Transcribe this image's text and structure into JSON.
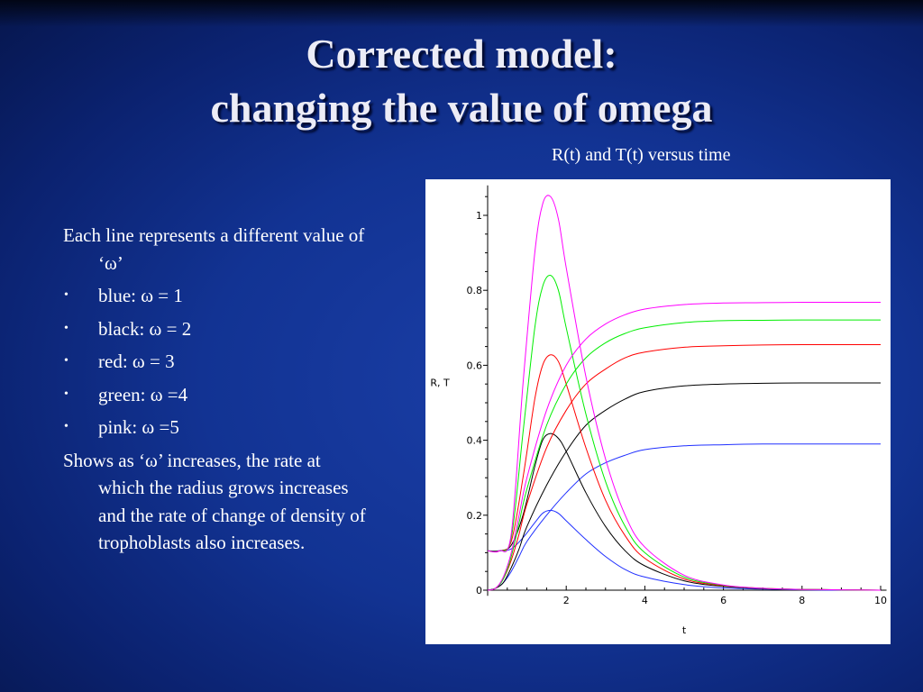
{
  "slide": {
    "title_line1": "Corrected model:",
    "title_line2": "changing the value of omega",
    "subtitle": "R(t) and T(t) versus time",
    "intro": "Each line represents a different value of ‘ω’",
    "bullets": [
      "blue: ω = 1",
      "black: ω = 2",
      "red: ω = 3",
      "green: ω =4",
      "pink: ω =5"
    ],
    "conclusion": "Shows as ‘ω’ increases, the rate at which the radius grows increases and the rate of change of density of trophoblasts also increases."
  },
  "chart_data": {
    "type": "line",
    "xlabel": "t",
    "ylabel": "R, T",
    "xlim": [
      0,
      10
    ],
    "ylim": [
      0,
      1.08
    ],
    "x_ticks": [
      "2",
      "4",
      "6",
      "8",
      "10"
    ],
    "y_ticks": [
      "0",
      "0.2",
      "0.4",
      "0.6",
      "0.8",
      "1"
    ],
    "grid": false,
    "series": [
      {
        "color": "#2030ff",
        "kind": "rising",
        "points": [
          [
            0,
            0
          ],
          [
            0.2,
            0.005
          ],
          [
            0.4,
            0.02
          ],
          [
            0.6,
            0.05
          ],
          [
            0.8,
            0.09
          ],
          [
            1,
            0.13
          ],
          [
            1.5,
            0.2
          ],
          [
            2,
            0.26
          ],
          [
            2.5,
            0.31
          ],
          [
            3,
            0.34
          ],
          [
            3.5,
            0.36
          ],
          [
            4,
            0.375
          ],
          [
            5,
            0.385
          ],
          [
            6,
            0.388
          ],
          [
            7,
            0.39
          ],
          [
            8,
            0.39
          ],
          [
            9,
            0.39
          ],
          [
            10,
            0.39
          ]
        ]
      },
      {
        "color": "#2030ff",
        "kind": "pulse",
        "points": [
          [
            0,
            0.105
          ],
          [
            0.3,
            0.105
          ],
          [
            0.6,
            0.11
          ],
          [
            0.9,
            0.14
          ],
          [
            1.2,
            0.18
          ],
          [
            1.4,
            0.205
          ],
          [
            1.6,
            0.213
          ],
          [
            1.8,
            0.205
          ],
          [
            2,
            0.185
          ],
          [
            2.5,
            0.135
          ],
          [
            3,
            0.09
          ],
          [
            3.5,
            0.055
          ],
          [
            4,
            0.035
          ],
          [
            5,
            0.015
          ],
          [
            6,
            0.006
          ],
          [
            7,
            0.003
          ],
          [
            8,
            0.001
          ],
          [
            9,
            0
          ],
          [
            10,
            0
          ]
        ]
      },
      {
        "color": "#000000",
        "kind": "rising",
        "points": [
          [
            0,
            0
          ],
          [
            0.2,
            0.005
          ],
          [
            0.4,
            0.02
          ],
          [
            0.6,
            0.06
          ],
          [
            0.8,
            0.11
          ],
          [
            1,
            0.17
          ],
          [
            1.5,
            0.28
          ],
          [
            2,
            0.37
          ],
          [
            2.5,
            0.44
          ],
          [
            3,
            0.48
          ],
          [
            3.5,
            0.51
          ],
          [
            4,
            0.53
          ],
          [
            5,
            0.545
          ],
          [
            6,
            0.55
          ],
          [
            7,
            0.552
          ],
          [
            8,
            0.553
          ],
          [
            9,
            0.553
          ],
          [
            10,
            0.553
          ]
        ]
      },
      {
        "color": "#000000",
        "kind": "pulse",
        "points": [
          [
            0,
            0.105
          ],
          [
            0.3,
            0.105
          ],
          [
            0.6,
            0.12
          ],
          [
            0.9,
            0.2
          ],
          [
            1.2,
            0.33
          ],
          [
            1.4,
            0.4
          ],
          [
            1.6,
            0.418
          ],
          [
            1.8,
            0.405
          ],
          [
            2,
            0.37
          ],
          [
            2.5,
            0.26
          ],
          [
            3,
            0.17
          ],
          [
            3.5,
            0.105
          ],
          [
            4,
            0.065
          ],
          [
            5,
            0.025
          ],
          [
            6,
            0.01
          ],
          [
            7,
            0.004
          ],
          [
            8,
            0.002
          ],
          [
            9,
            0.001
          ],
          [
            10,
            0
          ]
        ]
      },
      {
        "color": "#ff0000",
        "kind": "rising",
        "points": [
          [
            0,
            0
          ],
          [
            0.2,
            0.005
          ],
          [
            0.4,
            0.03
          ],
          [
            0.6,
            0.08
          ],
          [
            0.8,
            0.15
          ],
          [
            1,
            0.23
          ],
          [
            1.5,
            0.38
          ],
          [
            2,
            0.48
          ],
          [
            2.5,
            0.55
          ],
          [
            3,
            0.59
          ],
          [
            3.5,
            0.62
          ],
          [
            4,
            0.635
          ],
          [
            5,
            0.648
          ],
          [
            6,
            0.652
          ],
          [
            7,
            0.654
          ],
          [
            8,
            0.655
          ],
          [
            9,
            0.655
          ],
          [
            10,
            0.655
          ]
        ]
      },
      {
        "color": "#ff0000",
        "kind": "pulse",
        "points": [
          [
            0,
            0.105
          ],
          [
            0.3,
            0.105
          ],
          [
            0.6,
            0.13
          ],
          [
            0.9,
            0.3
          ],
          [
            1.2,
            0.51
          ],
          [
            1.4,
            0.6
          ],
          [
            1.6,
            0.628
          ],
          [
            1.8,
            0.61
          ],
          [
            2,
            0.55
          ],
          [
            2.5,
            0.38
          ],
          [
            3,
            0.24
          ],
          [
            3.5,
            0.145
          ],
          [
            4,
            0.085
          ],
          [
            5,
            0.03
          ],
          [
            6,
            0.012
          ],
          [
            7,
            0.005
          ],
          [
            8,
            0.002
          ],
          [
            9,
            0.001
          ],
          [
            10,
            0
          ]
        ]
      },
      {
        "color": "#00ee00",
        "kind": "rising",
        "points": [
          [
            0,
            0
          ],
          [
            0.2,
            0.005
          ],
          [
            0.4,
            0.03
          ],
          [
            0.6,
            0.09
          ],
          [
            0.8,
            0.18
          ],
          [
            1,
            0.27
          ],
          [
            1.5,
            0.44
          ],
          [
            2,
            0.55
          ],
          [
            2.5,
            0.62
          ],
          [
            3,
            0.66
          ],
          [
            3.5,
            0.685
          ],
          [
            4,
            0.7
          ],
          [
            5,
            0.714
          ],
          [
            6,
            0.719
          ],
          [
            7,
            0.72
          ],
          [
            8,
            0.721
          ],
          [
            9,
            0.721
          ],
          [
            10,
            0.721
          ]
        ]
      },
      {
        "color": "#00ee00",
        "kind": "pulse",
        "points": [
          [
            0,
            0.105
          ],
          [
            0.3,
            0.105
          ],
          [
            0.6,
            0.14
          ],
          [
            0.9,
            0.42
          ],
          [
            1.2,
            0.7
          ],
          [
            1.4,
            0.81
          ],
          [
            1.6,
            0.84
          ],
          [
            1.8,
            0.8
          ],
          [
            2,
            0.7
          ],
          [
            2.5,
            0.47
          ],
          [
            3,
            0.29
          ],
          [
            3.5,
            0.17
          ],
          [
            4,
            0.1
          ],
          [
            5,
            0.035
          ],
          [
            6,
            0.013
          ],
          [
            7,
            0.005
          ],
          [
            8,
            0.002
          ],
          [
            9,
            0.001
          ],
          [
            10,
            0
          ]
        ]
      },
      {
        "color": "#ff00ff",
        "kind": "rising",
        "points": [
          [
            0,
            0
          ],
          [
            0.2,
            0.005
          ],
          [
            0.4,
            0.035
          ],
          [
            0.6,
            0.1
          ],
          [
            0.8,
            0.2
          ],
          [
            1,
            0.3
          ],
          [
            1.5,
            0.48
          ],
          [
            2,
            0.6
          ],
          [
            2.5,
            0.67
          ],
          [
            3,
            0.71
          ],
          [
            3.5,
            0.735
          ],
          [
            4,
            0.75
          ],
          [
            5,
            0.762
          ],
          [
            6,
            0.766
          ],
          [
            7,
            0.767
          ],
          [
            8,
            0.768
          ],
          [
            9,
            0.768
          ],
          [
            10,
            0.768
          ]
        ]
      },
      {
        "color": "#ff00ff",
        "kind": "pulse",
        "points": [
          [
            0,
            0.105
          ],
          [
            0.3,
            0.105
          ],
          [
            0.6,
            0.15
          ],
          [
            0.9,
            0.55
          ],
          [
            1.2,
            0.9
          ],
          [
            1.4,
            1.03
          ],
          [
            1.6,
            1.05
          ],
          [
            1.8,
            0.99
          ],
          [
            2,
            0.86
          ],
          [
            2.5,
            0.57
          ],
          [
            3,
            0.35
          ],
          [
            3.5,
            0.2
          ],
          [
            4,
            0.115
          ],
          [
            5,
            0.04
          ],
          [
            6,
            0.014
          ],
          [
            7,
            0.005
          ],
          [
            8,
            0.002
          ],
          [
            9,
            0.001
          ],
          [
            10,
            0
          ]
        ]
      }
    ]
  }
}
